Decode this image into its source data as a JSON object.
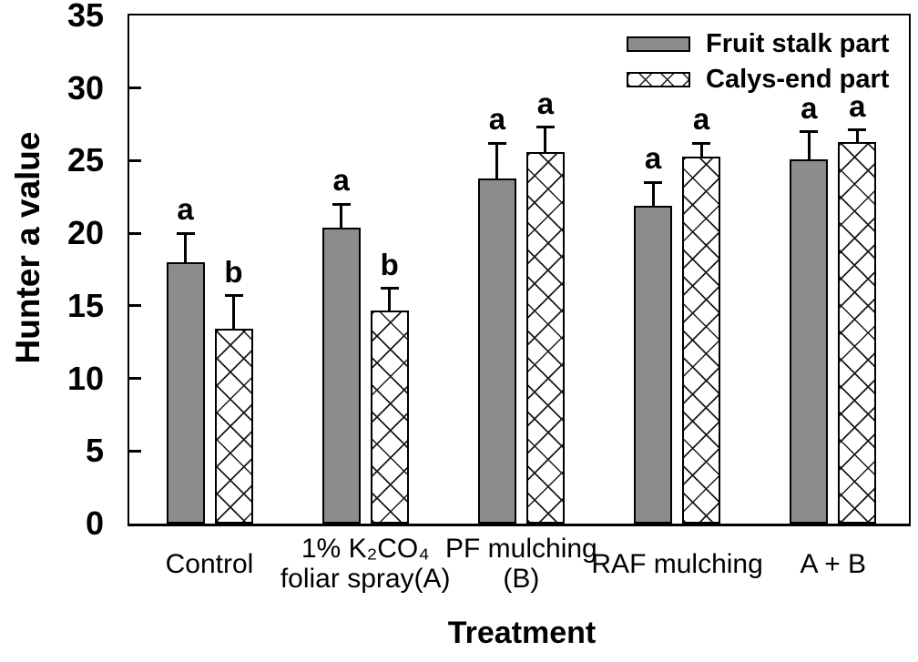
{
  "chart_data": {
    "type": "bar",
    "title": "",
    "xlabel": "Treatment",
    "ylabel": "Hunter a value",
    "ylim": [
      0,
      35
    ],
    "yticks": [
      0,
      5,
      10,
      15,
      20,
      25,
      30,
      35
    ],
    "grid": false,
    "legend_position": "top-right-inside",
    "categories": [
      "Control",
      "1% K₂CO₄ foliar spray(A)",
      "PF mulching (B)",
      "RAF mulching",
      "A + B"
    ],
    "category_lines": [
      [
        "Control"
      ],
      [
        "1% K₂CO₄",
        "foliar spray(A)"
      ],
      [
        "PF mulching",
        "(B)"
      ],
      [
        "RAF mulching"
      ],
      [
        "A + B"
      ]
    ],
    "series": [
      {
        "name": "Fruit stalk part",
        "style": "solid",
        "values": [
          18.0,
          20.4,
          23.8,
          21.9,
          25.1
        ],
        "errors": [
          2.0,
          1.6,
          2.4,
          1.6,
          1.9
        ],
        "letters": [
          "a",
          "a",
          "a",
          "a",
          "a"
        ]
      },
      {
        "name": "Calys-end part",
        "style": "hatch",
        "values": [
          13.4,
          14.7,
          25.6,
          25.3,
          26.3
        ],
        "errors": [
          2.3,
          1.5,
          1.7,
          0.9,
          0.8
        ],
        "letters": [
          "b",
          "b",
          "a",
          "a",
          "a"
        ]
      }
    ],
    "colors": {
      "bar_fill_gray": "#8c8c8c",
      "hatch_fill": "#ffffff",
      "hatch_line": "#1a1a1a",
      "axis": "#000000",
      "background": "#ffffff"
    }
  }
}
